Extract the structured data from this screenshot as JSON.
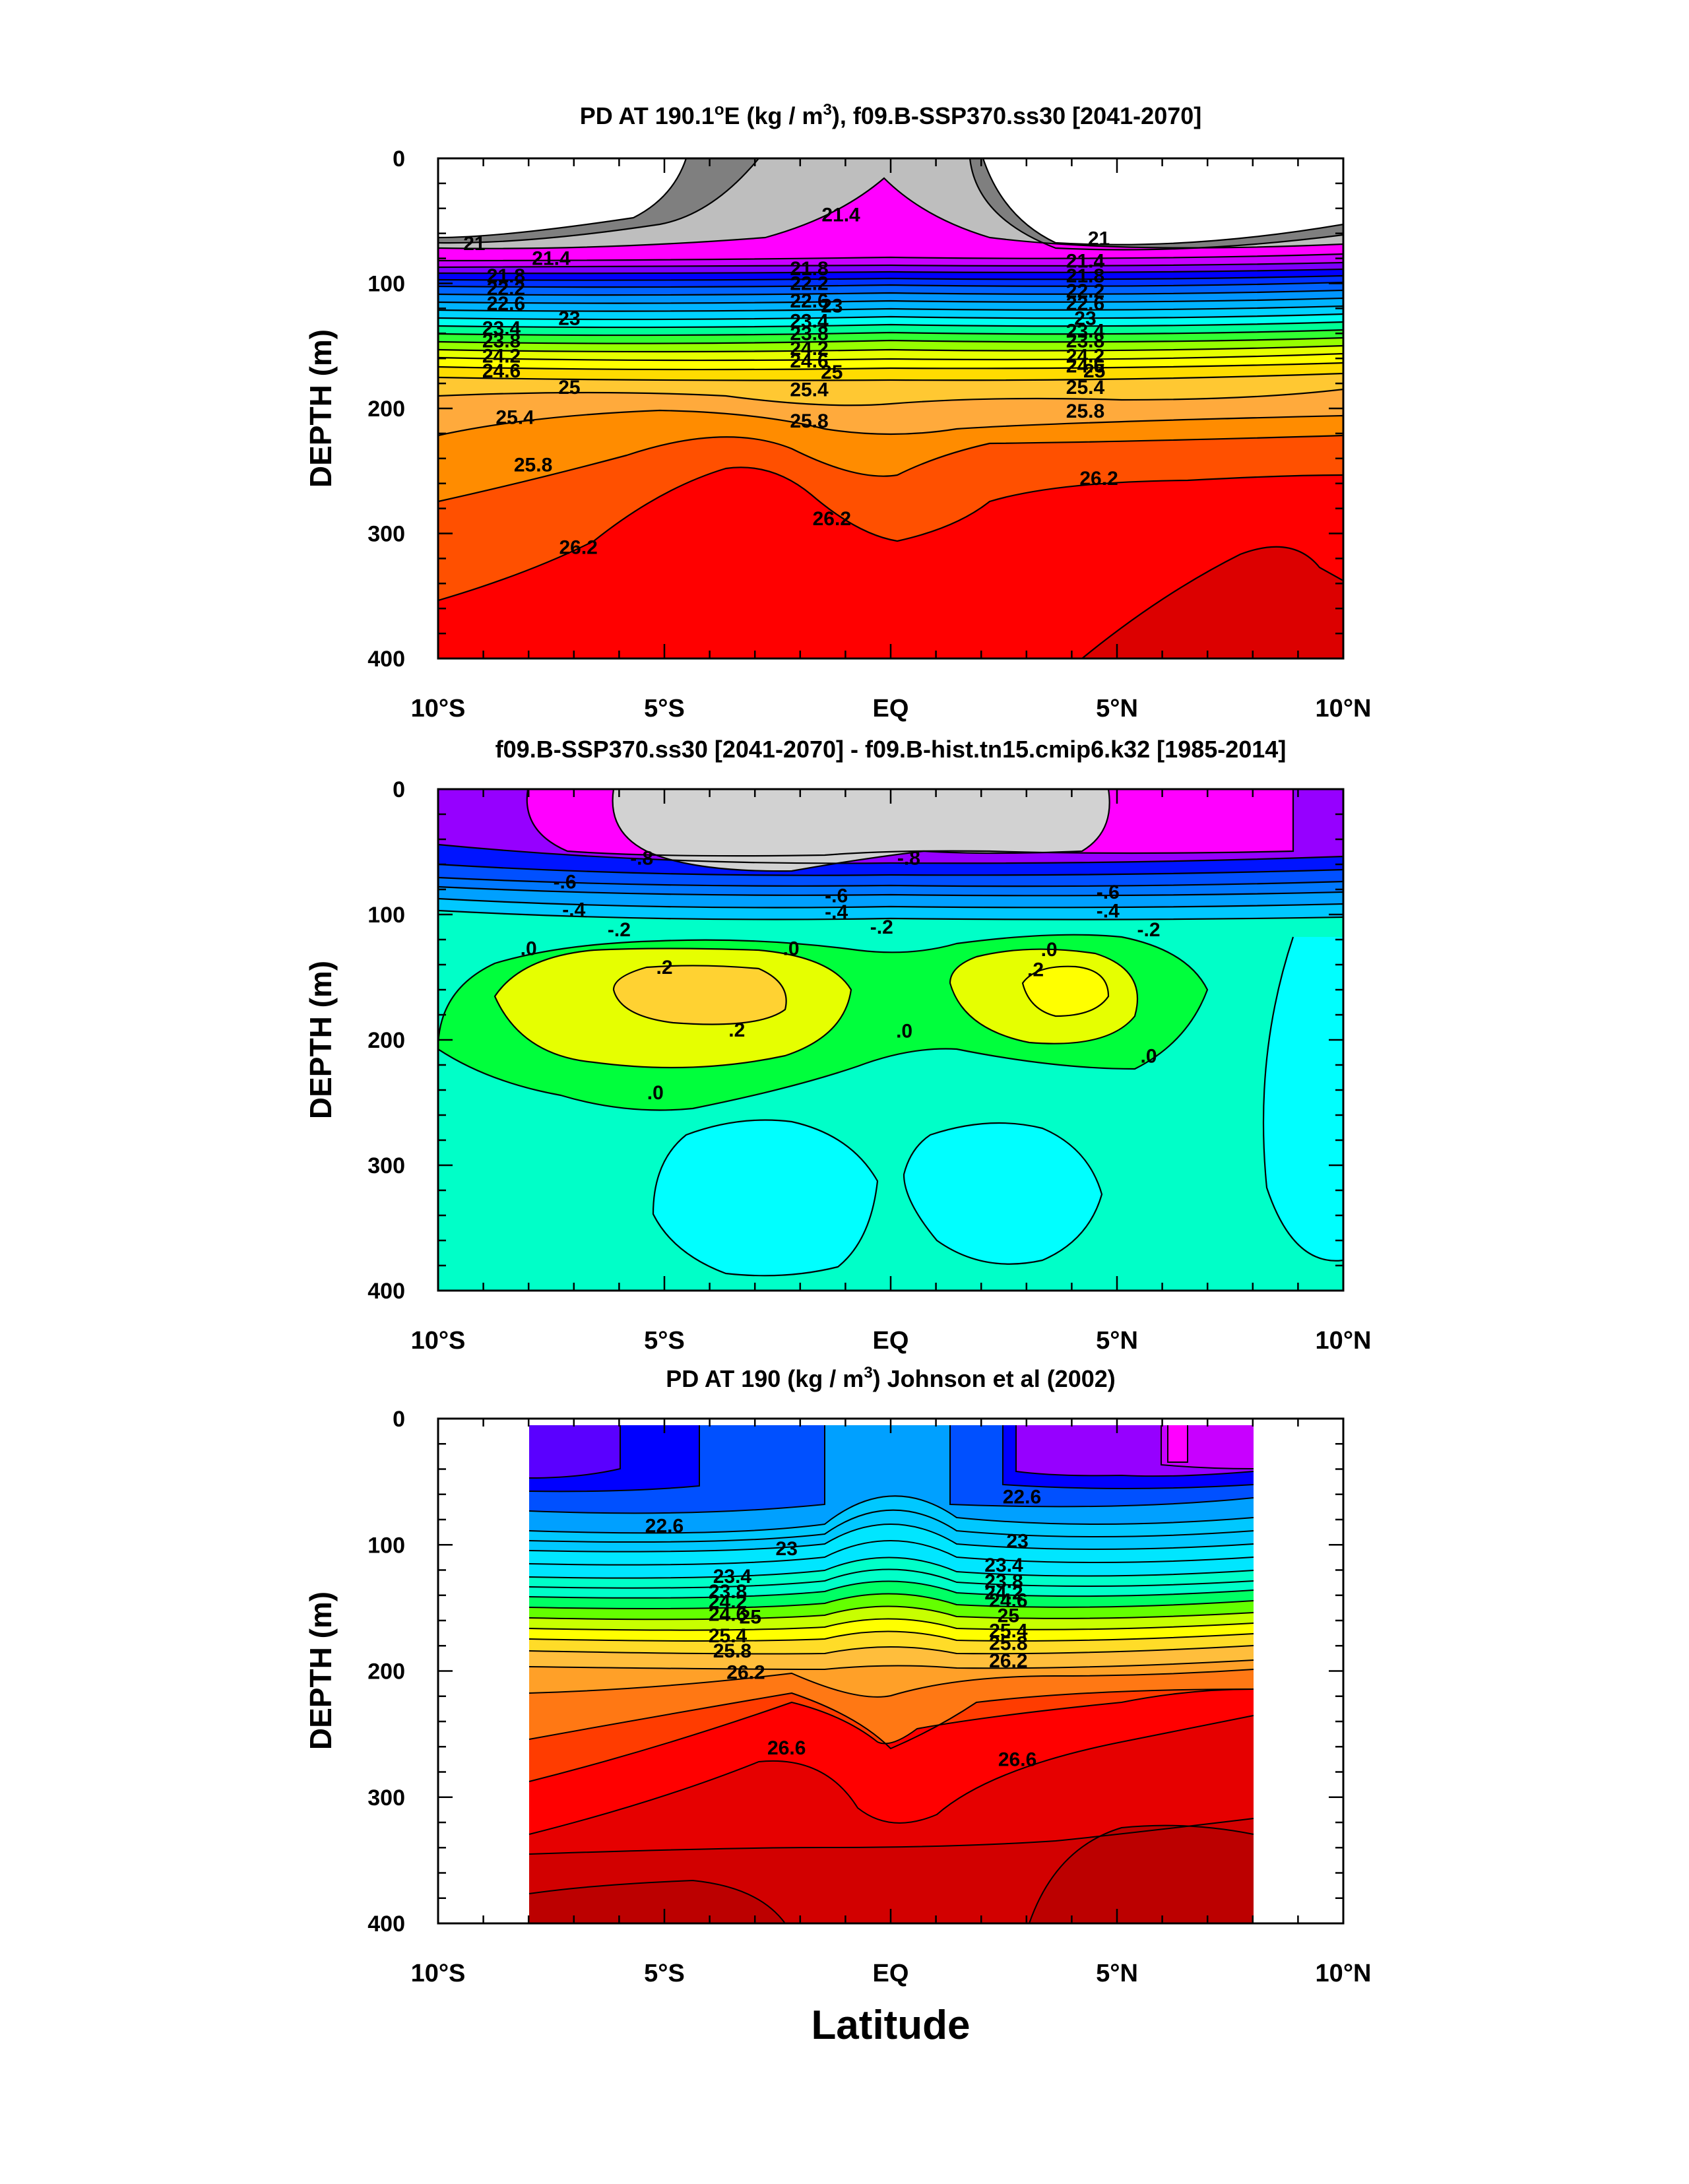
{
  "figure": {
    "xlabel": "Latitude",
    "colors": {
      "frame": "#000000",
      "background": "#ffffff"
    }
  },
  "chart_data": [
    {
      "type": "contour",
      "title_parts": [
        "PD AT 190.1",
        "o",
        "E (kg / m",
        "3",
        "), f09.B-SSP370.ss30 [2041-2070]"
      ],
      "ylabel": "DEPTH (m)",
      "xlim": [
        -10,
        10
      ],
      "ylim": [
        400,
        0
      ],
      "xticks": [
        -10,
        -5,
        0,
        5,
        10
      ],
      "xtick_labels": [
        "10°S",
        "5°S",
        "EQ",
        "5°N",
        "10°N"
      ],
      "yticks": [
        0,
        100,
        200,
        300,
        400
      ],
      "ytick_labels": [
        "0",
        "100",
        "200",
        "300",
        "400"
      ],
      "contour_interval": 0.2,
      "contour_levels": [
        21.0,
        21.4,
        21.8,
        22.2,
        22.6,
        23.0,
        23.4,
        23.8,
        24.2,
        24.6,
        25.0,
        25.4,
        25.8,
        26.2
      ],
      "contour_labels": [
        {
          "text": "21",
          "lat": -9.2,
          "depth": 68
        },
        {
          "text": "21.4",
          "lat": -7.5,
          "depth": 80
        },
        {
          "text": "21.8",
          "lat": -8.5,
          "depth": 94
        },
        {
          "text": "22.2",
          "lat": -8.5,
          "depth": 104
        },
        {
          "text": "22.6",
          "lat": -8.5,
          "depth": 116
        },
        {
          "text": "23",
          "lat": -7.1,
          "depth": 128
        },
        {
          "text": "23.4",
          "lat": -8.6,
          "depth": 136
        },
        {
          "text": "23.8",
          "lat": -8.6,
          "depth": 146
        },
        {
          "text": "24.2",
          "lat": -8.6,
          "depth": 158
        },
        {
          "text": "24.6",
          "lat": -8.6,
          "depth": 170
        },
        {
          "text": "25",
          "lat": -7.1,
          "depth": 183
        },
        {
          "text": "25.4",
          "lat": -8.3,
          "depth": 207
        },
        {
          "text": "25.8",
          "lat": -7.9,
          "depth": 245
        },
        {
          "text": "26.2",
          "lat": -6.9,
          "depth": 311
        },
        {
          "text": "21.4",
          "lat": -1.1,
          "depth": 45
        },
        {
          "text": "21.8",
          "lat": -1.8,
          "depth": 88
        },
        {
          "text": "22.2",
          "lat": -1.8,
          "depth": 100
        },
        {
          "text": "22.6",
          "lat": -1.8,
          "depth": 114
        },
        {
          "text": "23",
          "lat": -1.3,
          "depth": 118
        },
        {
          "text": "23.4",
          "lat": -1.8,
          "depth": 130
        },
        {
          "text": "23.8",
          "lat": -1.8,
          "depth": 140
        },
        {
          "text": "24.2",
          "lat": -1.8,
          "depth": 152
        },
        {
          "text": "24.6",
          "lat": -1.8,
          "depth": 162
        },
        {
          "text": "25",
          "lat": -1.3,
          "depth": 171
        },
        {
          "text": "25.4",
          "lat": -1.8,
          "depth": 185
        },
        {
          "text": "25.8",
          "lat": -1.8,
          "depth": 210
        },
        {
          "text": "26.2",
          "lat": -1.3,
          "depth": 288
        },
        {
          "text": "21",
          "lat": 4.6,
          "depth": 64
        },
        {
          "text": "21.4",
          "lat": 4.3,
          "depth": 82
        },
        {
          "text": "21.8",
          "lat": 4.3,
          "depth": 94
        },
        {
          "text": "22.2",
          "lat": 4.3,
          "depth": 106
        },
        {
          "text": "22.6",
          "lat": 4.3,
          "depth": 116
        },
        {
          "text": "23",
          "lat": 4.3,
          "depth": 128
        },
        {
          "text": "23.4",
          "lat": 4.3,
          "depth": 138
        },
        {
          "text": "23.8",
          "lat": 4.3,
          "depth": 146
        },
        {
          "text": "24.2",
          "lat": 4.3,
          "depth": 158
        },
        {
          "text": "24.6",
          "lat": 4.3,
          "depth": 166
        },
        {
          "text": "25",
          "lat": 4.5,
          "depth": 170
        },
        {
          "text": "25.4",
          "lat": 4.3,
          "depth": 183
        },
        {
          "text": "25.8",
          "lat": 4.3,
          "depth": 202
        },
        {
          "text": "26.2",
          "lat": 4.6,
          "depth": 256
        }
      ]
    },
    {
      "type": "contour",
      "title_parts": [
        "f09.B-SSP370.ss30 [2041-2070] - f09.B-hist.tn15.cmip6.k32 [1985-2014]"
      ],
      "ylabel": "DEPTH (m)",
      "xlim": [
        -10,
        10
      ],
      "ylim": [
        400,
        0
      ],
      "xticks": [
        -10,
        -5,
        0,
        5,
        10
      ],
      "xtick_labels": [
        "10°S",
        "5°S",
        "EQ",
        "5°N",
        "10°N"
      ],
      "yticks": [
        0,
        100,
        200,
        300,
        400
      ],
      "ytick_labels": [
        "0",
        "100",
        "200",
        "300",
        "400"
      ],
      "contour_interval": 0.2,
      "contour_levels": [
        -0.8,
        -0.6,
        -0.4,
        -0.2,
        0.0,
        0.2
      ],
      "contour_labels": [
        {
          "text": "-.8",
          "lat": -5.5,
          "depth": 55
        },
        {
          "text": "-.8",
          "lat": 0.4,
          "depth": 55
        },
        {
          "text": "-.6",
          "lat": -7.2,
          "depth": 74
        },
        {
          "text": "-.6",
          "lat": -1.2,
          "depth": 85
        },
        {
          "text": "-.6",
          "lat": 4.8,
          "depth": 82
        },
        {
          "text": "-.4",
          "lat": -7.0,
          "depth": 96
        },
        {
          "text": "-.4",
          "lat": -1.2,
          "depth": 98
        },
        {
          "text": "-.4",
          "lat": 4.8,
          "depth": 97
        },
        {
          "text": "-.2",
          "lat": -6.0,
          "depth": 112
        },
        {
          "text": "-.2",
          "lat": -0.2,
          "depth": 110
        },
        {
          "text": "-.2",
          "lat": 5.7,
          "depth": 112
        },
        {
          "text": ".0",
          "lat": -8.0,
          "depth": 127
        },
        {
          "text": ".0",
          "lat": -2.2,
          "depth": 127
        },
        {
          "text": ".0",
          "lat": 3.5,
          "depth": 128
        },
        {
          "text": ".2",
          "lat": -5.0,
          "depth": 142
        },
        {
          "text": ".2",
          "lat": 3.2,
          "depth": 144
        },
        {
          "text": ".2",
          "lat": -3.4,
          "depth": 192
        },
        {
          "text": ".0",
          "lat": 0.3,
          "depth": 193
        },
        {
          "text": ".0",
          "lat": 5.7,
          "depth": 213
        },
        {
          "text": ".0",
          "lat": -5.2,
          "depth": 242
        }
      ]
    },
    {
      "type": "contour",
      "title_parts": [
        "PD AT 190 (kg / m",
        "3",
        ") Johnson et al (2002)"
      ],
      "ylabel": "DEPTH (m)",
      "xlim": [
        -10,
        10
      ],
      "ylim": [
        400,
        0
      ],
      "data_lat_range": [
        -8,
        8
      ],
      "xticks": [
        -10,
        -5,
        0,
        5,
        10
      ],
      "xtick_labels": [
        "10°S",
        "5°S",
        "EQ",
        "5°N",
        "10°N"
      ],
      "yticks": [
        0,
        100,
        200,
        300,
        400
      ],
      "ytick_labels": [
        "0",
        "100",
        "200",
        "300",
        "400"
      ],
      "contour_interval": 0.2,
      "contour_levels": [
        22.6,
        23.0,
        23.4,
        23.8,
        24.2,
        24.6,
        25.0,
        25.4,
        25.8,
        26.2,
        26.6
      ],
      "contour_labels": [
        {
          "text": "22.6",
          "lat": -5.0,
          "depth": 85
        },
        {
          "text": "23",
          "lat": -2.3,
          "depth": 103
        },
        {
          "text": "23.4",
          "lat": -3.5,
          "depth": 125
        },
        {
          "text": "23.8",
          "lat": -3.6,
          "depth": 137
        },
        {
          "text": "24.2",
          "lat": -3.6,
          "depth": 145
        },
        {
          "text": "24.6",
          "lat": -3.6,
          "depth": 155
        },
        {
          "text": "25",
          "lat": -3.1,
          "depth": 157
        },
        {
          "text": "25.4",
          "lat": -3.6,
          "depth": 172
        },
        {
          "text": "25.8",
          "lat": -3.5,
          "depth": 184
        },
        {
          "text": "26.2",
          "lat": -3.2,
          "depth": 201
        },
        {
          "text": "26.6",
          "lat": -2.3,
          "depth": 261
        },
        {
          "text": "22.6",
          "lat": 2.9,
          "depth": 62
        },
        {
          "text": "23",
          "lat": 2.8,
          "depth": 97
        },
        {
          "text": "23.4",
          "lat": 2.5,
          "depth": 116
        },
        {
          "text": "23.8",
          "lat": 2.5,
          "depth": 129
        },
        {
          "text": "24.2",
          "lat": 2.5,
          "depth": 138
        },
        {
          "text": "24.6",
          "lat": 2.6,
          "depth": 144
        },
        {
          "text": "25",
          "lat": 2.6,
          "depth": 156
        },
        {
          "text": "25.4",
          "lat": 2.6,
          "depth": 168
        },
        {
          "text": "25.8",
          "lat": 2.6,
          "depth": 178
        },
        {
          "text": "26.2",
          "lat": 2.6,
          "depth": 192
        },
        {
          "text": "26.6",
          "lat": 2.8,
          "depth": 270
        }
      ]
    }
  ]
}
